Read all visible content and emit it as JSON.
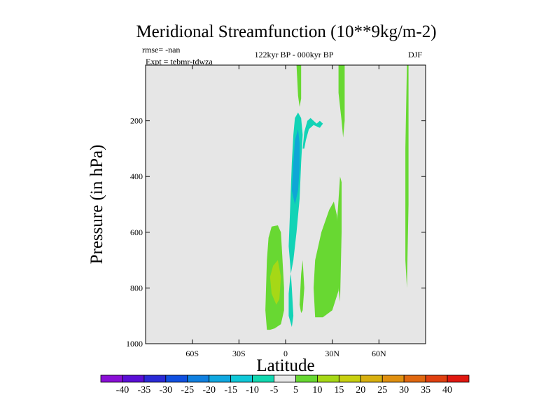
{
  "chart_data": {
    "type": "contour",
    "title": "Meridional Streamfunction (10**9kg/m-2)",
    "annotations": {
      "rmse": "rmse= -nan",
      "expt": "Expt = tebmr-tdwza",
      "period": "122kyr BP - 000kyr BP",
      "season": "DJF"
    },
    "xlabel": "Latitude",
    "ylabel": "Pressure (in hPa)",
    "xlim": [
      -90,
      90
    ],
    "ylim": [
      1000,
      0
    ],
    "x_ticks": [
      -60,
      -30,
      0,
      30,
      60
    ],
    "x_tick_labels": [
      "60S",
      "30S",
      "0",
      "30N",
      "60N"
    ],
    "y_ticks": [
      200,
      400,
      600,
      800,
      1000
    ],
    "y_tick_labels": [
      "200",
      "400",
      "600",
      "800",
      "1000"
    ],
    "background_color": "#e6e6e6",
    "regions": [
      {
        "name": "upper-tropics-cyan",
        "level": -7.5,
        "color": "#12d3b6",
        "points": [
          [
            2,
            650
          ],
          [
            3,
            500
          ],
          [
            4,
            350
          ],
          [
            5,
            250
          ],
          [
            6,
            190
          ],
          [
            8,
            170
          ],
          [
            10,
            190
          ],
          [
            11,
            250
          ],
          [
            10,
            350
          ],
          [
            9,
            480
          ],
          [
            7,
            600
          ],
          [
            5,
            700
          ],
          [
            3,
            760
          ],
          [
            2,
            820
          ],
          [
            2,
            900
          ],
          [
            4,
            940
          ],
          [
            5,
            900
          ],
          [
            4,
            800
          ],
          [
            3,
            720
          ]
        ]
      },
      {
        "name": "upper-tropics-blue",
        "level": -12.5,
        "color": "#0fa6d6",
        "points": [
          [
            4,
            450
          ],
          [
            5,
            350
          ],
          [
            6,
            270
          ],
          [
            8,
            230
          ],
          [
            9,
            280
          ],
          [
            9,
            370
          ],
          [
            8,
            450
          ],
          [
            6,
            500
          ]
        ]
      },
      {
        "name": "cyan-lobe-upper",
        "level": -7.5,
        "color": "#12d3b6",
        "points": [
          [
            11,
            300
          ],
          [
            12,
            240
          ],
          [
            14,
            200
          ],
          [
            16,
            190
          ],
          [
            18,
            200
          ],
          [
            20,
            210
          ],
          [
            22,
            200
          ],
          [
            24,
            210
          ],
          [
            22,
            225
          ],
          [
            18,
            215
          ],
          [
            15,
            230
          ],
          [
            13,
            270
          ],
          [
            12,
            300
          ]
        ]
      },
      {
        "name": "green-west",
        "level": 7.5,
        "color": "#68d832",
        "points": [
          [
            -12,
            950
          ],
          [
            -13,
            880
          ],
          [
            -12,
            700
          ],
          [
            -11,
            620
          ],
          [
            -9,
            580
          ],
          [
            -5,
            575
          ],
          [
            -3,
            600
          ],
          [
            -2,
            700
          ],
          [
            -1,
            800
          ],
          [
            -1,
            880
          ],
          [
            -3,
            930
          ],
          [
            -7,
            945
          ],
          [
            -10,
            950
          ]
        ]
      },
      {
        "name": "yellowgreen-west",
        "level": 12.5,
        "color": "#a6d816",
        "points": [
          [
            -9,
            820
          ],
          [
            -10,
            760
          ],
          [
            -8,
            720
          ],
          [
            -5,
            700
          ],
          [
            -3,
            760
          ],
          [
            -4,
            840
          ],
          [
            -6,
            860
          ]
        ]
      },
      {
        "name": "green-lower-mid",
        "level": 7.5,
        "color": "#68d832",
        "points": [
          [
            19,
            905
          ],
          [
            18,
            800
          ],
          [
            19,
            700
          ],
          [
            23,
            600
          ],
          [
            28,
            520
          ],
          [
            31,
            490
          ],
          [
            33,
            540
          ],
          [
            35,
            700
          ],
          [
            34,
            810
          ],
          [
            30,
            880
          ],
          [
            24,
            905
          ]
        ]
      },
      {
        "name": "green-column-upper",
        "level": 7.5,
        "color": "#68d832",
        "points": [
          [
            7,
            0
          ],
          [
            10,
            0
          ],
          [
            10,
            120
          ],
          [
            9,
            150
          ],
          [
            8,
            110
          ]
        ]
      },
      {
        "name": "green-column-mid",
        "level": 7.5,
        "color": "#68d832",
        "points": [
          [
            34,
            0
          ],
          [
            38,
            0
          ],
          [
            38,
            200
          ],
          [
            37,
            260
          ],
          [
            36,
            200
          ],
          [
            34,
            100
          ]
        ]
      },
      {
        "name": "green-column-east",
        "level": 7.5,
        "color": "#68d832",
        "points": [
          [
            33,
            570
          ],
          [
            35,
            400
          ],
          [
            36,
            420
          ],
          [
            36,
            600
          ],
          [
            35,
            850
          ],
          [
            34,
            800
          ]
        ]
      },
      {
        "name": "green-strip-high-lat",
        "level": 7.5,
        "color": "#68d832",
        "points": [
          [
            78,
            0
          ],
          [
            79,
            0
          ],
          [
            79,
            500
          ],
          [
            78,
            800
          ],
          [
            77,
            700
          ],
          [
            77,
            300
          ]
        ]
      },
      {
        "name": "green-small-equator",
        "level": 7.5,
        "color": "#68d832",
        "points": [
          [
            9,
            860
          ],
          [
            10,
            750
          ],
          [
            11,
            700
          ],
          [
            12,
            800
          ],
          [
            11,
            880
          ],
          [
            10,
            890
          ]
        ]
      }
    ],
    "colorbar": {
      "labels": [
        "-40",
        "-35",
        "-30",
        "-25",
        "-20",
        "-15",
        "-10",
        "-5",
        "5",
        "10",
        "15",
        "20",
        "25",
        "30",
        "35",
        "40"
      ],
      "colors": [
        "#8a0fd6",
        "#5a0fd6",
        "#2a2ad6",
        "#1050e0",
        "#1080e0",
        "#10a8e0",
        "#10c8d8",
        "#12d8b0",
        "#e8e8e8",
        "#68d832",
        "#a6d816",
        "#c8d010",
        "#d8b010",
        "#e09010",
        "#e06810",
        "#e04010",
        "#e01810"
      ]
    }
  }
}
